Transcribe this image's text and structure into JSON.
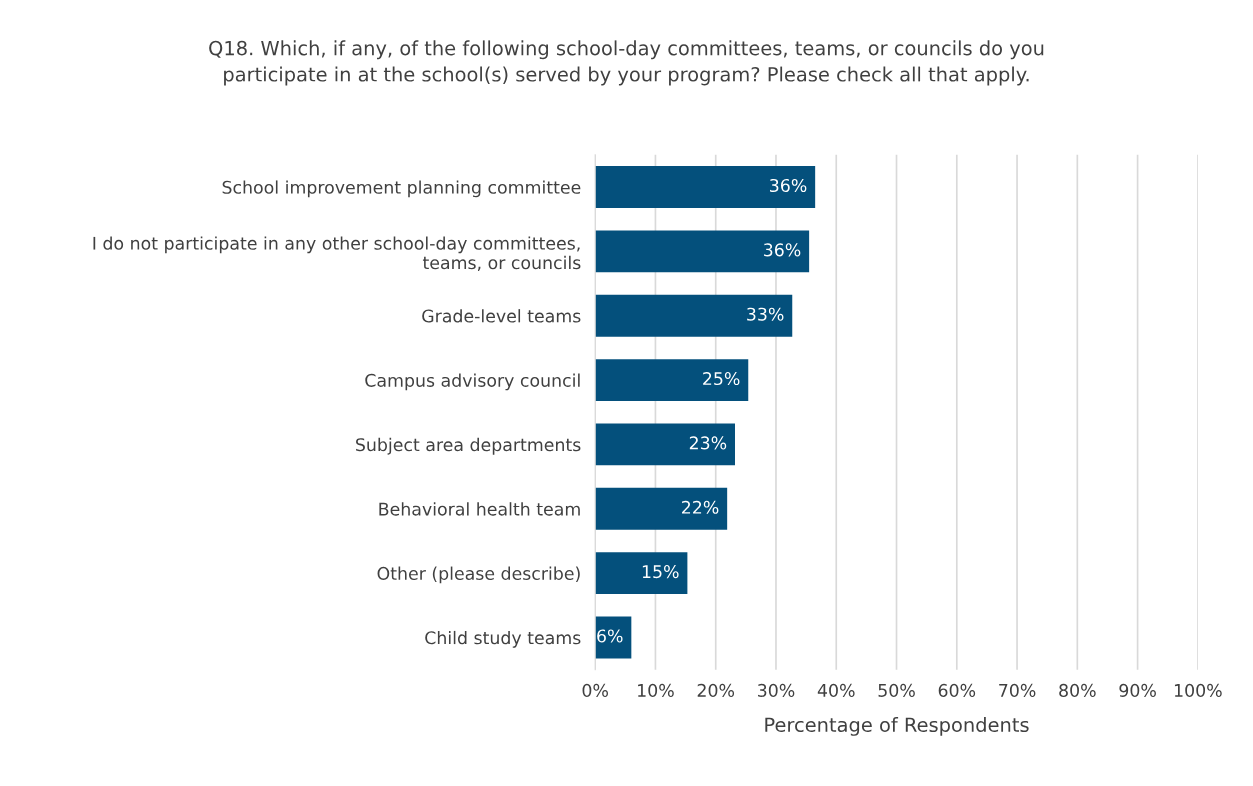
{
  "chart_data": {
    "type": "bar",
    "orientation": "horizontal",
    "title": "Q18. Which, if any, of the following school-day committees, teams, or councils do you\nparticipate in at the school(s) served by your program? Please check all that apply.",
    "xlabel": "Percentage of Respondents",
    "categories": [
      "School improvement planning committee",
      "I do not participate in any other school-day committees,\nteams, or councils",
      "Grade-level teams",
      "Campus advisory council",
      "Subject area departments",
      "Behavioral health team",
      "Other (please describe)",
      "Child study teams"
    ],
    "values": [
      36.5,
      35.5,
      32.7,
      25.4,
      23.2,
      21.9,
      15.3,
      6.0
    ],
    "value_labels": [
      "36%",
      "36%",
      "33%",
      "25%",
      "23%",
      "22%",
      "15%",
      "6%"
    ],
    "color": "#04507c",
    "grid": "x",
    "legend": false,
    "xlim": [
      0,
      100
    ],
    "xticks": [
      {
        "value": 0,
        "label": "0%"
      },
      {
        "value": 10,
        "label": "10%"
      },
      {
        "value": 20,
        "label": "20%"
      },
      {
        "value": 30,
        "label": "30%"
      },
      {
        "value": 40,
        "label": "40%"
      },
      {
        "value": 50,
        "label": "50%"
      },
      {
        "value": 60,
        "label": "60%"
      },
      {
        "value": 70,
        "label": "70%"
      },
      {
        "value": 80,
        "label": "80%"
      },
      {
        "value": 90,
        "label": "90%"
      },
      {
        "value": 100,
        "label": "100%"
      }
    ]
  }
}
